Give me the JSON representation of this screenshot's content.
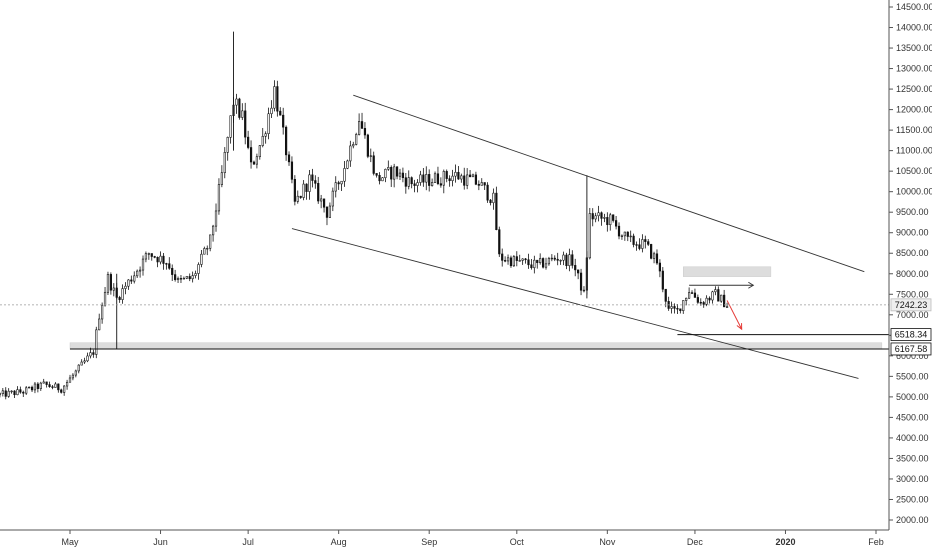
{
  "chart_data": {
    "type": "candlestick",
    "title": "",
    "xlabel": "",
    "ylabel": "",
    "grid": false,
    "x_ticks": [
      "May",
      "Jun",
      "Jul",
      "Aug",
      "Sep",
      "Oct",
      "Nov",
      "Dec",
      "2020",
      "Feb"
    ],
    "x_tick_dates": [
      "2019-05-01",
      "2019-06-01",
      "2019-07-01",
      "2019-08-01",
      "2019-09-01",
      "2019-10-01",
      "2019-11-01",
      "2019-12-01",
      "2020-01-01",
      "2020-02-01"
    ],
    "x_range": [
      "2019-04-07",
      "2020-02-03"
    ],
    "y_ticks": [
      "2000.00",
      "2500.00",
      "3000.00",
      "3500.00",
      "4000.00",
      "4500.00",
      "5000.00",
      "5500.00",
      "6000.00",
      "6500.00",
      "7000.00",
      "7500.00",
      "8000.00",
      "8500.00",
      "9000.00",
      "9500.00",
      "10000.00",
      "10500.00",
      "11000.00",
      "11500.00",
      "12000.00",
      "12500.00",
      "13000.00",
      "13500.00",
      "14000.00",
      "14500.00"
    ],
    "y_tick_values": [
      2000,
      2500,
      3000,
      3500,
      4000,
      4500,
      5000,
      5500,
      6000,
      6500,
      7000,
      7500,
      8000,
      8500,
      9000,
      9500,
      10000,
      10500,
      11000,
      11500,
      12000,
      12500,
      13000,
      13500,
      14000,
      14500
    ],
    "ylim": [
      1750,
      14900
    ],
    "current_price": {
      "label": "7242.23",
      "value": 7242.23
    },
    "price_tags": [
      {
        "label": "6518.34",
        "value": 6518.34
      },
      {
        "label": "6167.58",
        "value": 6167.58
      }
    ],
    "candles_anchor": [
      [
        "2019-04-07",
        5050
      ],
      [
        "2019-04-15",
        5130
      ],
      [
        "2019-04-22",
        5300
      ],
      [
        "2019-04-28",
        5200
      ],
      [
        "2019-05-03",
        5600
      ],
      [
        "2019-05-09",
        6100
      ],
      [
        "2019-05-11",
        7000
      ],
      [
        "2019-05-14",
        7900
      ],
      [
        "2019-05-17",
        7400
      ],
      [
        "2019-05-22",
        7900
      ],
      [
        "2019-05-28",
        8500
      ],
      [
        "2019-06-03",
        8300
      ],
      [
        "2019-06-07",
        7800
      ],
      [
        "2019-06-12",
        7900
      ],
      [
        "2019-06-18",
        8800
      ],
      [
        "2019-06-22",
        10400
      ],
      [
        "2019-06-26",
        12200
      ],
      [
        "2019-06-29",
        11800
      ],
      [
        "2019-07-02",
        10600
      ],
      [
        "2019-07-06",
        11300
      ],
      [
        "2019-07-10",
        12500
      ],
      [
        "2019-07-14",
        11000
      ],
      [
        "2019-07-17",
        9700
      ],
      [
        "2019-07-22",
        10300
      ],
      [
        "2019-07-28",
        9500
      ],
      [
        "2019-08-03",
        10600
      ],
      [
        "2019-08-08",
        11800
      ],
      [
        "2019-08-14",
        10300
      ],
      [
        "2019-08-20",
        10500
      ],
      [
        "2019-08-26",
        10200
      ],
      [
        "2019-09-02",
        10300
      ],
      [
        "2019-09-10",
        10400
      ],
      [
        "2019-09-18",
        10200
      ],
      [
        "2019-09-23",
        9800
      ],
      [
        "2019-09-25",
        8400
      ],
      [
        "2019-10-01",
        8300
      ],
      [
        "2019-10-08",
        8200
      ],
      [
        "2019-10-15",
        8400
      ],
      [
        "2019-10-20",
        8300
      ],
      [
        "2019-10-24",
        7500
      ],
      [
        "2019-10-26",
        9400
      ],
      [
        "2019-11-02",
        9300
      ],
      [
        "2019-11-08",
        8800
      ],
      [
        "2019-11-14",
        8700
      ],
      [
        "2019-11-18",
        8300
      ],
      [
        "2019-11-22",
        7100
      ],
      [
        "2019-11-25",
        7100
      ],
      [
        "2019-11-29",
        7600
      ],
      [
        "2019-12-03",
        7300
      ],
      [
        "2019-12-08",
        7500
      ],
      [
        "2019-12-12",
        7242
      ]
    ],
    "spikes": [
      {
        "date": "2019-05-17",
        "high": 8000,
        "low": 6167
      },
      {
        "date": "2019-06-26",
        "high": 13900,
        "low": 11000
      },
      {
        "date": "2019-10-25",
        "high": 10400,
        "low": 7400
      }
    ],
    "drawings": {
      "channel_upper": [
        [
          "2019-08-06",
          12350
        ],
        [
          "2020-01-28",
          8050
        ]
      ],
      "channel_lower": [
        [
          "2019-07-16",
          9100
        ],
        [
          "2020-01-26",
          5450
        ]
      ],
      "level_6518": [
        [
          "2019-11-25",
          6518.34
        ],
        [
          "2020-02-03",
          6518.34
        ]
      ],
      "level_6167": [
        [
          "2019-05-01",
          6167.58
        ],
        [
          "2020-02-03",
          6167.58
        ]
      ],
      "zone_top": [
        [
          "2019-11-27",
          "2019-12-27"
        ],
        [
          7930,
          8170
        ]
      ],
      "zone_bottom": [
        [
          "2019-05-01",
          "2020-02-03"
        ],
        [
          6160,
          6320
        ]
      ],
      "range_top_arrow": [
        [
          "2019-11-29",
          7720
        ],
        [
          "2019-12-21",
          7720
        ]
      ],
      "projection_arrow": [
        [
          "2019-12-12",
          7350
        ],
        [
          "2019-12-17",
          6650
        ]
      ]
    },
    "colors": {
      "candle": "#111111",
      "candle_up_fill": "#ffffff",
      "drawing": "#333333",
      "zone": "#dddddd",
      "projection": "#e53935",
      "axis_line": "#555555",
      "current_price_tag": "#eeeeee"
    }
  }
}
